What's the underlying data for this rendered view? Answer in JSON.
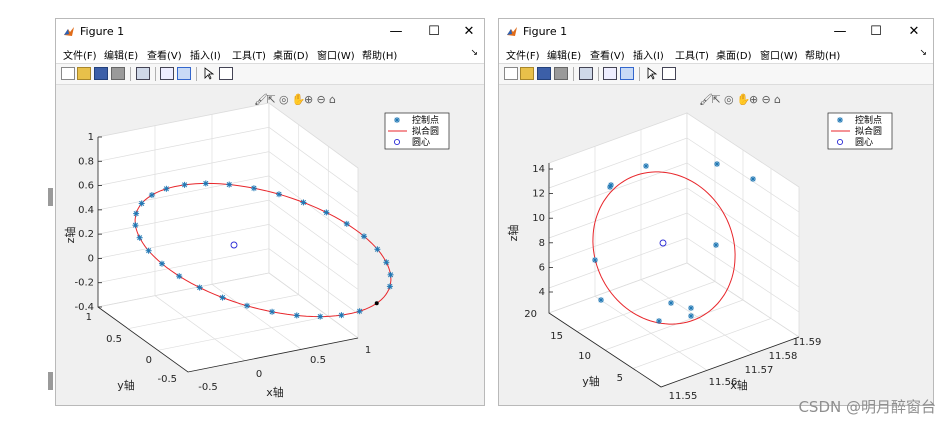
{
  "figures": [
    {
      "title": "Figure 1",
      "menus": [
        "文件(F)",
        "编辑(E)",
        "查看(V)",
        "插入(I)",
        "工具(T)",
        "桌面(D)",
        "窗口(W)",
        "帮助(H)"
      ],
      "window_buttons": [
        "—",
        "☐",
        "✕"
      ],
      "legend": [
        "控制点",
        "拟合圆",
        "圆心"
      ],
      "xlabel": "x轴",
      "ylabel": "y轴",
      "zlabel": "z轴",
      "xticks": [
        "-0.5",
        "0",
        "0.5",
        "1"
      ],
      "yticks": [
        "1",
        "0.5",
        "0",
        "-0.5"
      ],
      "zticks": [
        "1",
        "0.8",
        "0.6",
        "0.4",
        "0.2",
        "0",
        "-0.2",
        "-0.4"
      ]
    },
    {
      "title": "Figure 1",
      "menus": [
        "文件(F)",
        "编辑(E)",
        "查看(V)",
        "插入(I)",
        "工具(T)",
        "桌面(D)",
        "窗口(W)",
        "帮助(H)"
      ],
      "window_buttons": [
        "—",
        "☐",
        "✕"
      ],
      "legend": [
        "控制点",
        "拟合圆",
        "圆心"
      ],
      "xlabel": "x轴",
      "ylabel": "y轴",
      "zlabel": "z轴",
      "xticks": [
        "11.55",
        "11.56",
        "11.57",
        "11.58",
        "11.59"
      ],
      "yticks": [
        "20",
        "15",
        "10",
        "5"
      ],
      "zticks": [
        "14",
        "12",
        "10",
        "8",
        "6",
        "4"
      ]
    }
  ],
  "watermark": "CSDN @明月醉窗台",
  "colors": {
    "control_point": "#1f77b4",
    "fit_circle": "#e8262b",
    "center": "#2b2bd6",
    "grid": "#dcdcdc"
  },
  "axes_toolbar_icons": [
    "brush-icon",
    "export-icon",
    "rotate-icon",
    "pan-icon",
    "zoom-in-icon",
    "zoom-out-icon",
    "home-icon"
  ]
}
